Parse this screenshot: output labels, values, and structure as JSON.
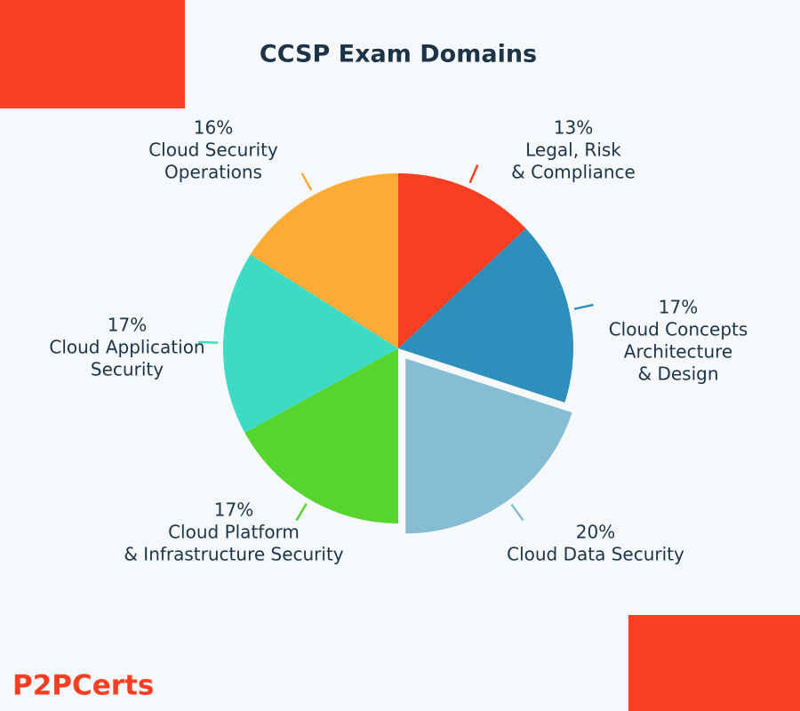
{
  "chart_data": {
    "type": "pie",
    "title": "CCSP Exam Domains",
    "categories": [
      [
        "Legal, Risk",
        "& Compliance"
      ],
      [
        "Cloud Concepts",
        "Architecture",
        "& Design"
      ],
      [
        "Cloud Data Security"
      ],
      [
        "Cloud Platform",
        "& Infrastructure Security"
      ],
      [
        "Cloud Application",
        "Security"
      ],
      [
        "Cloud Security",
        "Operations"
      ]
    ],
    "values": [
      13,
      17,
      20,
      17,
      17,
      16
    ],
    "value_labels": [
      "13%",
      "17%",
      "20%",
      "17%",
      "17%",
      "16%"
    ],
    "colors": [
      "#f83f23",
      "#2e8fbd",
      "#87bdd3",
      "#55d52e",
      "#3ddbc3",
      "#fdab35"
    ],
    "exploded": [
      2
    ]
  },
  "brand": "P2PCerts"
}
